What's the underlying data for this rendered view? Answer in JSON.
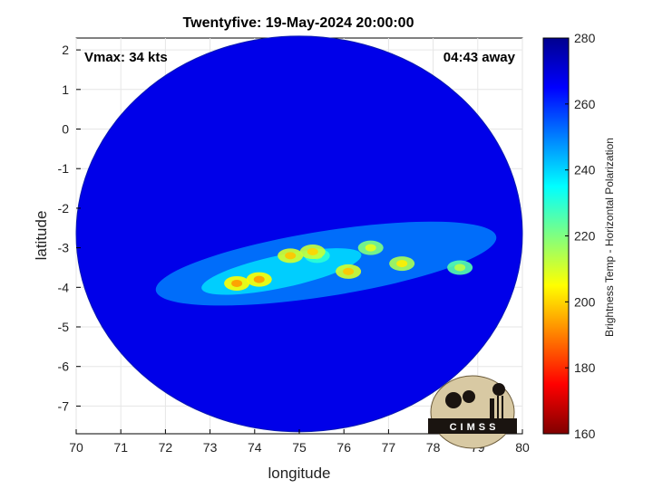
{
  "chart_data": {
    "type": "heatmap",
    "title": "Twentyfive: 19-May-2024 20:00:00",
    "xlabel": "longitude",
    "ylabel": "latitude",
    "xlim": [
      70,
      80
    ],
    "ylim": [
      -7.7,
      2.3
    ],
    "xticks": [
      "70",
      "71",
      "72",
      "73",
      "74",
      "75",
      "76",
      "77",
      "78",
      "79",
      "80"
    ],
    "yticks": [
      "2",
      "1",
      "0",
      "-1",
      "-2",
      "-3",
      "-4",
      "-5",
      "-6",
      "-7"
    ],
    "grid": true,
    "colorbar": {
      "label": "Brightness Temp - Horizontal Polarization",
      "range": [
        160,
        280
      ],
      "ticks": [
        "280",
        "260",
        "240",
        "220",
        "200",
        "180",
        "160"
      ],
      "colormap": [
        "#00008f",
        "#0000ff",
        "#0080ff",
        "#00ffff",
        "#80ff80",
        "#ffff00",
        "#ff8000",
        "#ff0000",
        "#800000"
      ]
    },
    "swath": {
      "center_lon": 75.0,
      "center_lat": -2.65,
      "radius_lon": 5.0,
      "radius_lat": 5.0
    },
    "features": [
      {
        "lon": 75.4,
        "lat": -3.2,
        "value": 230
      },
      {
        "lon": 73.6,
        "lat": -3.9,
        "value": 205
      },
      {
        "lon": 74.1,
        "lat": -3.8,
        "value": 205
      },
      {
        "lon": 74.8,
        "lat": -3.2,
        "value": 210
      },
      {
        "lon": 75.3,
        "lat": -3.1,
        "value": 212
      },
      {
        "lon": 76.1,
        "lat": -3.6,
        "value": 210
      },
      {
        "lon": 77.3,
        "lat": -3.4,
        "value": 215
      },
      {
        "lon": 76.6,
        "lat": -3.0,
        "value": 220
      },
      {
        "lon": 78.6,
        "lat": -3.5,
        "value": 225
      }
    ],
    "annotations": {
      "vmax": "Vmax: 34 kts",
      "time_away": "04:43 away"
    }
  },
  "logo": {
    "text": "CIMSS"
  }
}
